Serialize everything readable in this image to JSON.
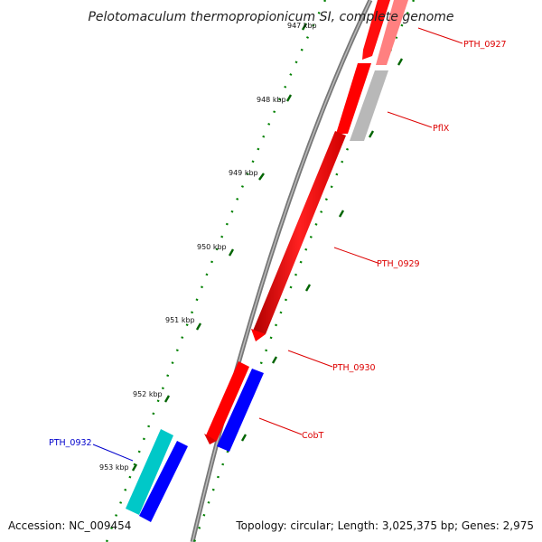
{
  "title": "Pelotomaculum thermopropionicum SI, complete genome",
  "ticks": [
    "947 kbp",
    "948 kbp",
    "949 kbp",
    "950 kbp",
    "951 kbp",
    "952 kbp",
    "953 kbp"
  ],
  "genes": [
    {
      "label": "PTH_0927",
      "color": "#ff8080",
      "strand": "reverse"
    },
    {
      "label": "PflX",
      "color": "#b0b0b0",
      "strand": "forward"
    },
    {
      "label": "PTH_0929",
      "color": "#ff0000",
      "strand": "reverse"
    },
    {
      "label": "PTH_0930",
      "color": "#ff0000",
      "strand": "reverse"
    },
    {
      "label": "CobT",
      "color": "#0000ff",
      "strand": "forward"
    },
    {
      "label": "PTH_0932",
      "color": "#00c0c0",
      "strand": "forward"
    }
  ],
  "colors": {
    "gene_label_red": "#dd0000",
    "gene_label_blue": "#0000cc",
    "tick_marks": "#007000",
    "backbone": "#888888"
  },
  "footer": {
    "accession": "Accession: NC_009454",
    "summary": "Topology: circular; Length: 3,025,375 bp; Genes: 2,975"
  }
}
